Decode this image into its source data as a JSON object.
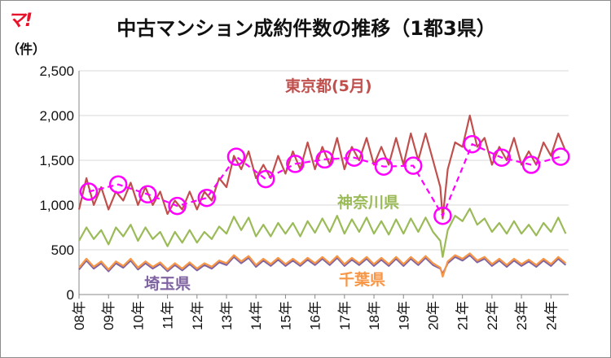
{
  "logo": "マ!",
  "chart_data": {
    "type": "line",
    "title": "中古マンション成約件数の推移（1都3県）",
    "ylabel": "（件）",
    "ylim": [
      0,
      2500
    ],
    "yticks": [
      0,
      500,
      1000,
      1500,
      2000,
      2500
    ],
    "ytick_labels": [
      "0",
      "500",
      "1,000",
      "1,500",
      "2,000",
      "2,500"
    ],
    "xrange": [
      2008,
      2024.6
    ],
    "xtick_labels": [
      "08年",
      "09年",
      "10年",
      "11年",
      "12年",
      "13年",
      "14年",
      "15年",
      "16年",
      "17年",
      "18年",
      "19年",
      "20年",
      "21年",
      "22年",
      "23年",
      "24年"
    ],
    "grid": true,
    "colors": {
      "tokyo": "#c0504d",
      "kanagawa": "#9bbb59",
      "saitama": "#8064a2",
      "chiba": "#f79646",
      "may_marker": "#ff00ff"
    },
    "series": [
      {
        "name": "東京都",
        "label": "東京都",
        "color": "#c0504d",
        "points": [
          [
            2008.0,
            950
          ],
          [
            2008.25,
            1300
          ],
          [
            2008.5,
            1000
          ],
          [
            2008.75,
            1200
          ],
          [
            2009.0,
            950
          ],
          [
            2009.25,
            1150
          ],
          [
            2009.5,
            1050
          ],
          [
            2009.75,
            1250
          ],
          [
            2010.0,
            1000
          ],
          [
            2010.25,
            1200
          ],
          [
            2010.5,
            1000
          ],
          [
            2010.75,
            1150
          ],
          [
            2011.0,
            900
          ],
          [
            2011.25,
            1050
          ],
          [
            2011.5,
            950
          ],
          [
            2011.75,
            1150
          ],
          [
            2012.0,
            950
          ],
          [
            2012.25,
            1150
          ],
          [
            2012.5,
            1050
          ],
          [
            2012.75,
            1300
          ],
          [
            2013.0,
            1200
          ],
          [
            2013.25,
            1550
          ],
          [
            2013.5,
            1400
          ],
          [
            2013.75,
            1600
          ],
          [
            2014.0,
            1300
          ],
          [
            2014.25,
            1450
          ],
          [
            2014.5,
            1300
          ],
          [
            2014.75,
            1550
          ],
          [
            2015.0,
            1350
          ],
          [
            2015.25,
            1600
          ],
          [
            2015.5,
            1400
          ],
          [
            2015.75,
            1700
          ],
          [
            2016.0,
            1400
          ],
          [
            2016.25,
            1650
          ],
          [
            2016.5,
            1450
          ],
          [
            2016.75,
            1750
          ],
          [
            2017.0,
            1400
          ],
          [
            2017.25,
            1650
          ],
          [
            2017.5,
            1500
          ],
          [
            2017.75,
            1750
          ],
          [
            2018.0,
            1450
          ],
          [
            2018.25,
            1650
          ],
          [
            2018.5,
            1450
          ],
          [
            2018.75,
            1750
          ],
          [
            2019.0,
            1450
          ],
          [
            2019.25,
            1800
          ],
          [
            2019.5,
            1500
          ],
          [
            2019.75,
            1800
          ],
          [
            2020.0,
            1500
          ],
          [
            2020.25,
            1200
          ],
          [
            2020.33,
            850
          ],
          [
            2020.5,
            1400
          ],
          [
            2020.75,
            1700
          ],
          [
            2021.0,
            1650
          ],
          [
            2021.25,
            2000
          ],
          [
            2021.5,
            1650
          ],
          [
            2021.75,
            1750
          ],
          [
            2022.0,
            1450
          ],
          [
            2022.25,
            1650
          ],
          [
            2022.5,
            1500
          ],
          [
            2022.75,
            1750
          ],
          [
            2023.0,
            1450
          ],
          [
            2023.25,
            1600
          ],
          [
            2023.5,
            1450
          ],
          [
            2023.75,
            1700
          ],
          [
            2024.0,
            1550
          ],
          [
            2024.25,
            1800
          ],
          [
            2024.5,
            1600
          ]
        ]
      },
      {
        "name": "神奈川県",
        "label": "神奈川県",
        "color": "#9bbb59",
        "points": [
          [
            2008.0,
            600
          ],
          [
            2008.25,
            750
          ],
          [
            2008.5,
            620
          ],
          [
            2008.75,
            720
          ],
          [
            2009.0,
            560
          ],
          [
            2009.25,
            750
          ],
          [
            2009.5,
            650
          ],
          [
            2009.75,
            780
          ],
          [
            2010.0,
            600
          ],
          [
            2010.25,
            750
          ],
          [
            2010.5,
            620
          ],
          [
            2010.75,
            700
          ],
          [
            2011.0,
            540
          ],
          [
            2011.25,
            700
          ],
          [
            2011.5,
            580
          ],
          [
            2011.75,
            720
          ],
          [
            2012.0,
            580
          ],
          [
            2012.25,
            700
          ],
          [
            2012.5,
            620
          ],
          [
            2012.75,
            760
          ],
          [
            2013.0,
            680
          ],
          [
            2013.25,
            870
          ],
          [
            2013.5,
            720
          ],
          [
            2013.75,
            860
          ],
          [
            2014.0,
            650
          ],
          [
            2014.25,
            780
          ],
          [
            2014.5,
            650
          ],
          [
            2014.75,
            800
          ],
          [
            2015.0,
            680
          ],
          [
            2015.25,
            800
          ],
          [
            2015.5,
            650
          ],
          [
            2015.75,
            820
          ],
          [
            2016.0,
            690
          ],
          [
            2016.25,
            850
          ],
          [
            2016.5,
            700
          ],
          [
            2016.75,
            880
          ],
          [
            2017.0,
            680
          ],
          [
            2017.25,
            840
          ],
          [
            2017.5,
            700
          ],
          [
            2017.75,
            860
          ],
          [
            2018.0,
            680
          ],
          [
            2018.25,
            820
          ],
          [
            2018.5,
            670
          ],
          [
            2018.75,
            840
          ],
          [
            2019.0,
            680
          ],
          [
            2019.25,
            850
          ],
          [
            2019.5,
            700
          ],
          [
            2019.75,
            860
          ],
          [
            2020.0,
            700
          ],
          [
            2020.25,
            600
          ],
          [
            2020.33,
            420
          ],
          [
            2020.5,
            720
          ],
          [
            2020.75,
            880
          ],
          [
            2021.0,
            820
          ],
          [
            2021.25,
            960
          ],
          [
            2021.5,
            780
          ],
          [
            2021.75,
            850
          ],
          [
            2022.0,
            700
          ],
          [
            2022.25,
            800
          ],
          [
            2022.5,
            680
          ],
          [
            2022.75,
            820
          ],
          [
            2023.0,
            680
          ],
          [
            2023.25,
            780
          ],
          [
            2023.5,
            660
          ],
          [
            2023.75,
            800
          ],
          [
            2024.0,
            700
          ],
          [
            2024.25,
            860
          ],
          [
            2024.5,
            680
          ]
        ]
      },
      {
        "name": "埼玉県",
        "label": "埼玉県",
        "color": "#8064a2",
        "points": [
          [
            2008.0,
            280
          ],
          [
            2008.25,
            380
          ],
          [
            2008.5,
            290
          ],
          [
            2008.75,
            350
          ],
          [
            2009.0,
            260
          ],
          [
            2009.25,
            350
          ],
          [
            2009.5,
            300
          ],
          [
            2009.75,
            380
          ],
          [
            2010.0,
            280
          ],
          [
            2010.25,
            350
          ],
          [
            2010.5,
            290
          ],
          [
            2010.75,
            340
          ],
          [
            2011.0,
            260
          ],
          [
            2011.25,
            330
          ],
          [
            2011.5,
            270
          ],
          [
            2011.75,
            340
          ],
          [
            2012.0,
            270
          ],
          [
            2012.25,
            330
          ],
          [
            2012.5,
            290
          ],
          [
            2012.75,
            360
          ],
          [
            2013.0,
            330
          ],
          [
            2013.25,
            420
          ],
          [
            2013.5,
            350
          ],
          [
            2013.75,
            410
          ],
          [
            2014.0,
            310
          ],
          [
            2014.25,
            380
          ],
          [
            2014.5,
            320
          ],
          [
            2014.75,
            390
          ],
          [
            2015.0,
            320
          ],
          [
            2015.25,
            380
          ],
          [
            2015.5,
            320
          ],
          [
            2015.75,
            390
          ],
          [
            2016.0,
            330
          ],
          [
            2016.25,
            400
          ],
          [
            2016.5,
            330
          ],
          [
            2016.75,
            410
          ],
          [
            2017.0,
            320
          ],
          [
            2017.25,
            390
          ],
          [
            2017.5,
            330
          ],
          [
            2017.75,
            400
          ],
          [
            2018.0,
            320
          ],
          [
            2018.25,
            390
          ],
          [
            2018.5,
            320
          ],
          [
            2018.75,
            400
          ],
          [
            2019.0,
            320
          ],
          [
            2019.25,
            400
          ],
          [
            2019.5,
            330
          ],
          [
            2019.75,
            410
          ],
          [
            2020.0,
            330
          ],
          [
            2020.25,
            290
          ],
          [
            2020.33,
            230
          ],
          [
            2020.5,
            350
          ],
          [
            2020.75,
            420
          ],
          [
            2021.0,
            380
          ],
          [
            2021.25,
            440
          ],
          [
            2021.5,
            360
          ],
          [
            2021.75,
            400
          ],
          [
            2022.0,
            320
          ],
          [
            2022.25,
            380
          ],
          [
            2022.5,
            310
          ],
          [
            2022.75,
            380
          ],
          [
            2023.0,
            320
          ],
          [
            2023.25,
            370
          ],
          [
            2023.5,
            310
          ],
          [
            2023.75,
            380
          ],
          [
            2024.0,
            320
          ],
          [
            2024.25,
            400
          ],
          [
            2024.5,
            330
          ]
        ]
      },
      {
        "name": "千葉県",
        "label": "千葉県",
        "color": "#f79646",
        "points": [
          [
            2008.0,
            300
          ],
          [
            2008.25,
            400
          ],
          [
            2008.5,
            310
          ],
          [
            2008.75,
            370
          ],
          [
            2009.0,
            280
          ],
          [
            2009.25,
            370
          ],
          [
            2009.5,
            320
          ],
          [
            2009.75,
            400
          ],
          [
            2010.0,
            300
          ],
          [
            2010.25,
            370
          ],
          [
            2010.5,
            310
          ],
          [
            2010.75,
            360
          ],
          [
            2011.0,
            280
          ],
          [
            2011.25,
            350
          ],
          [
            2011.5,
            290
          ],
          [
            2011.75,
            360
          ],
          [
            2012.0,
            290
          ],
          [
            2012.25,
            350
          ],
          [
            2012.5,
            310
          ],
          [
            2012.75,
            380
          ],
          [
            2013.0,
            350
          ],
          [
            2013.25,
            440
          ],
          [
            2013.5,
            370
          ],
          [
            2013.75,
            430
          ],
          [
            2014.0,
            330
          ],
          [
            2014.25,
            400
          ],
          [
            2014.5,
            340
          ],
          [
            2014.75,
            410
          ],
          [
            2015.0,
            340
          ],
          [
            2015.25,
            400
          ],
          [
            2015.5,
            340
          ],
          [
            2015.75,
            410
          ],
          [
            2016.0,
            350
          ],
          [
            2016.25,
            420
          ],
          [
            2016.5,
            350
          ],
          [
            2016.75,
            430
          ],
          [
            2017.0,
            340
          ],
          [
            2017.25,
            410
          ],
          [
            2017.5,
            350
          ],
          [
            2017.75,
            420
          ],
          [
            2018.0,
            340
          ],
          [
            2018.25,
            410
          ],
          [
            2018.5,
            340
          ],
          [
            2018.75,
            420
          ],
          [
            2019.0,
            340
          ],
          [
            2019.25,
            420
          ],
          [
            2019.5,
            350
          ],
          [
            2019.75,
            430
          ],
          [
            2020.0,
            350
          ],
          [
            2020.25,
            300
          ],
          [
            2020.33,
            200
          ],
          [
            2020.5,
            370
          ],
          [
            2020.75,
            440
          ],
          [
            2021.0,
            400
          ],
          [
            2021.25,
            460
          ],
          [
            2021.5,
            380
          ],
          [
            2021.75,
            420
          ],
          [
            2022.0,
            340
          ],
          [
            2022.25,
            400
          ],
          [
            2022.5,
            330
          ],
          [
            2022.75,
            400
          ],
          [
            2023.0,
            340
          ],
          [
            2023.25,
            390
          ],
          [
            2023.5,
            330
          ],
          [
            2023.75,
            400
          ],
          [
            2024.0,
            340
          ],
          [
            2024.25,
            420
          ],
          [
            2024.5,
            350
          ]
        ]
      }
    ],
    "may_series": {
      "name": "東京都（5月）",
      "label": "東京都(5月)",
      "color": "#ff00ff",
      "points": [
        [
          2008.33,
          1150
        ],
        [
          2009.33,
          1230
        ],
        [
          2010.33,
          1120
        ],
        [
          2011.33,
          990
        ],
        [
          2012.33,
          1080
        ],
        [
          2013.33,
          1540
        ],
        [
          2014.33,
          1290
        ],
        [
          2015.33,
          1460
        ],
        [
          2016.33,
          1510
        ],
        [
          2017.33,
          1530
        ],
        [
          2018.33,
          1430
        ],
        [
          2019.33,
          1440
        ],
        [
          2020.33,
          880
        ],
        [
          2021.33,
          1680
        ],
        [
          2022.33,
          1530
        ],
        [
          2023.33,
          1450
        ],
        [
          2024.33,
          1540
        ]
      ]
    }
  }
}
